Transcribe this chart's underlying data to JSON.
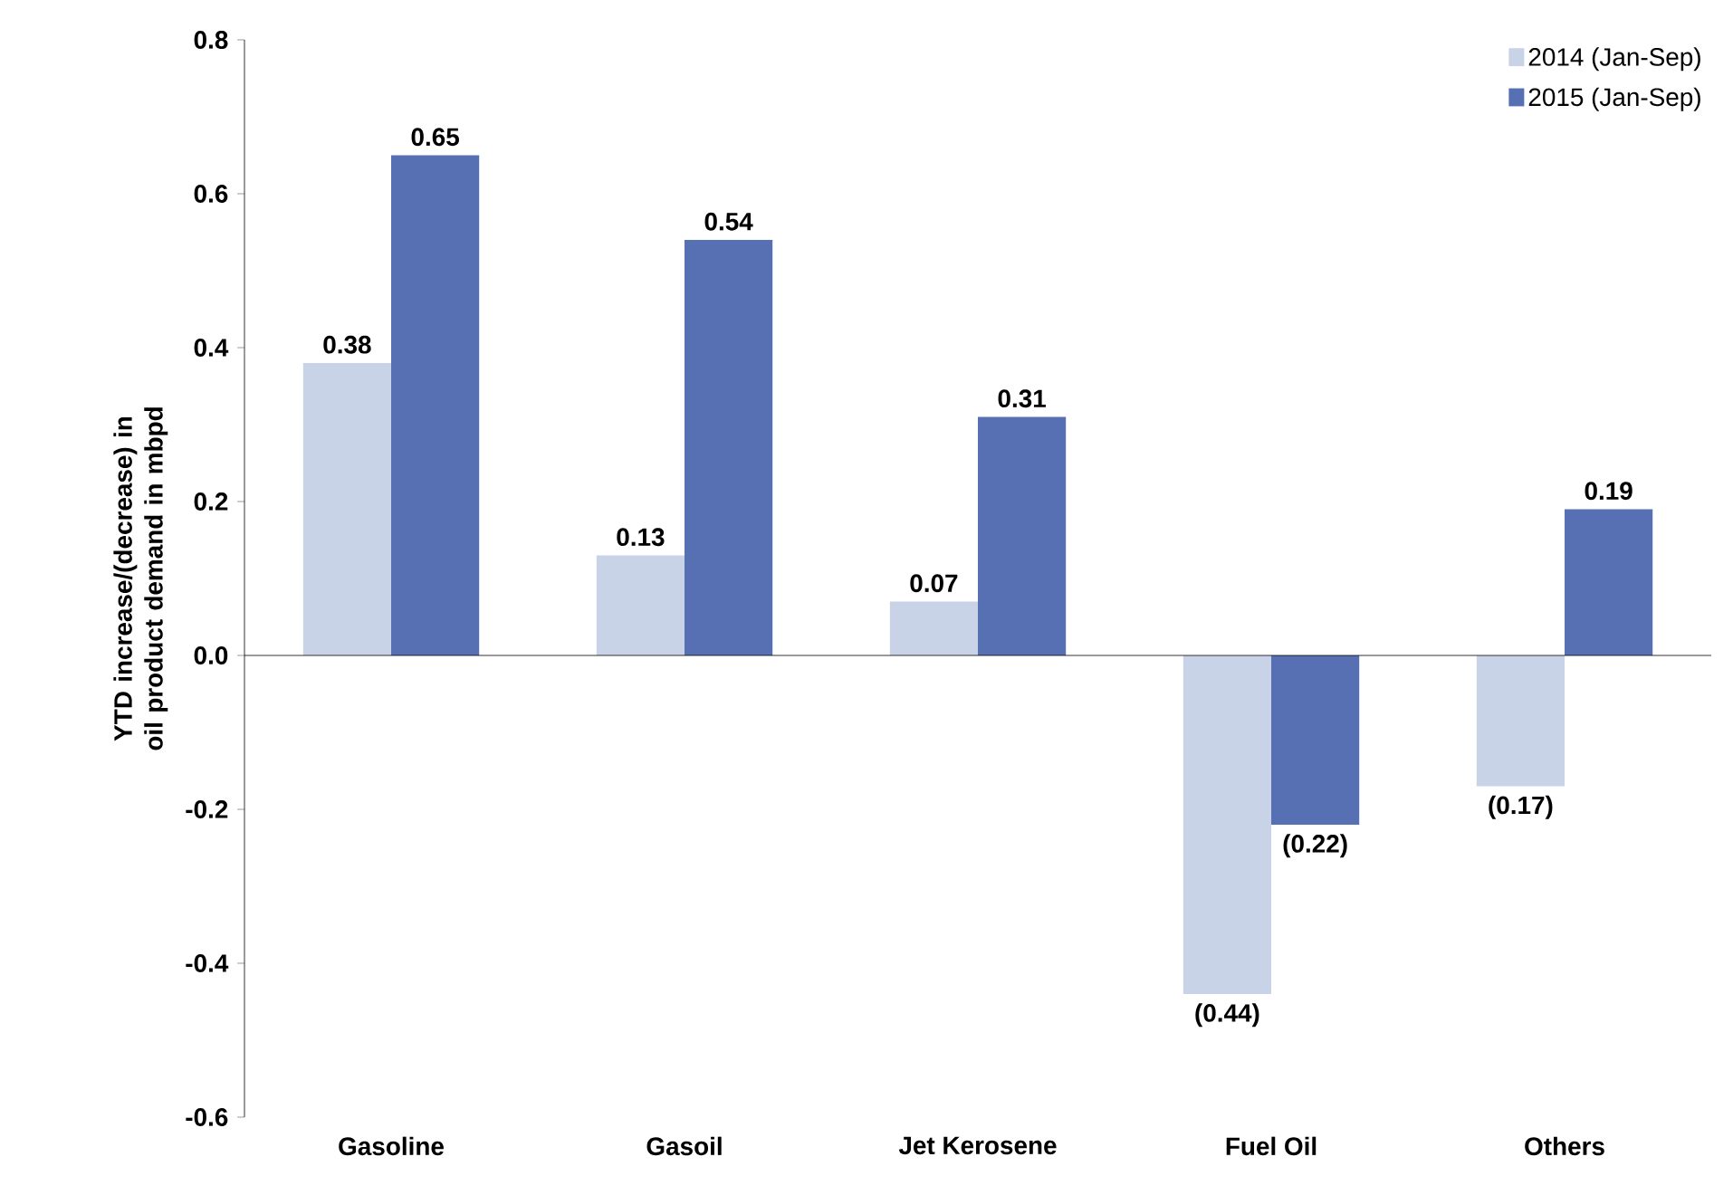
{
  "chart_data": {
    "type": "bar",
    "ylabel": "YTD increase/(decrease) in oil product demand in mbpd",
    "categories": [
      "Gasoline",
      "Gasoil",
      "Jet Kerosene",
      "Fuel Oil",
      "Others"
    ],
    "series": [
      {
        "name": "2014 (Jan-Sep)",
        "color": "#c9d3e7",
        "values": [
          0.38,
          0.13,
          0.07,
          -0.44,
          -0.17
        ],
        "value_labels": [
          "0.38",
          "0.13",
          "0.07",
          "(0.44)",
          "(0.17)"
        ]
      },
      {
        "name": "2015 (Jan-Sep)",
        "color": "#5670b3",
        "values": [
          0.65,
          0.54,
          0.31,
          -0.22,
          0.19
        ],
        "value_labels": [
          "0.65",
          "0.54",
          "0.31",
          "(0.22)",
          "0.19"
        ]
      }
    ],
    "ylim": [
      -0.6,
      0.8
    ],
    "yticks": [
      -0.6,
      -0.4,
      -0.2,
      {
        "value": 0,
        "label": "0.0"
      },
      0.2,
      0.4,
      0.6,
      0.8
    ],
    "legend": "top right"
  }
}
